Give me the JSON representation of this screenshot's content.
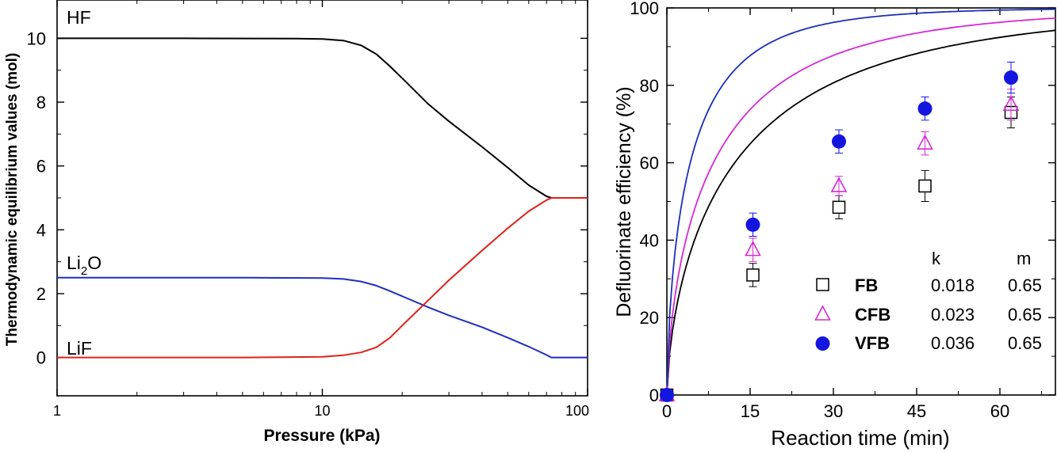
{
  "chart_data": [
    {
      "type": "line",
      "title": "",
      "xlabel": "Pressure (kPa)",
      "ylabel": "Thermodynamic equilibrium values (mol)",
      "xscale": "log",
      "xlim": [
        1,
        100
      ],
      "ylim": [
        -1.2,
        11.2
      ],
      "x_ticks": [
        1,
        10,
        100
      ],
      "x_tick_labels": [
        "1",
        "10",
        "100"
      ],
      "y_ticks": [
        0,
        2,
        4,
        6,
        8,
        10
      ],
      "y_tick_labels": [
        "0",
        "2",
        "4",
        "6",
        "8",
        "10"
      ],
      "grid": false,
      "series": [
        {
          "name": "HF",
          "label_text": "HF",
          "color": "#000000",
          "points": [
            [
              1,
              10
            ],
            [
              3,
              10
            ],
            [
              8,
              9.99
            ],
            [
              10,
              9.98
            ],
            [
              12,
              9.93
            ],
            [
              14,
              9.78
            ],
            [
              16,
              9.5
            ],
            [
              18,
              9.12
            ],
            [
              20,
              8.75
            ],
            [
              25,
              7.95
            ],
            [
              30,
              7.4
            ],
            [
              40,
              6.6
            ],
            [
              50,
              5.95
            ],
            [
              60,
              5.4
            ],
            [
              70,
              5.05
            ],
            [
              73,
              5.0
            ],
            [
              80,
              5.0
            ],
            [
              100,
              5.0
            ]
          ]
        },
        {
          "name": "Li₂O",
          "label_main": "Li",
          "label_sub": "2",
          "label_end": "O",
          "color": "#1f2fbf",
          "points": [
            [
              1,
              2.5
            ],
            [
              5,
              2.5
            ],
            [
              10,
              2.49
            ],
            [
              12,
              2.46
            ],
            [
              14,
              2.38
            ],
            [
              16,
              2.25
            ],
            [
              18,
              2.08
            ],
            [
              20,
              1.92
            ],
            [
              25,
              1.58
            ],
            [
              30,
              1.32
            ],
            [
              40,
              0.95
            ],
            [
              50,
              0.62
            ],
            [
              60,
              0.34
            ],
            [
              70,
              0.08
            ],
            [
              73,
              0.0
            ],
            [
              80,
              0.0
            ],
            [
              100,
              0.0
            ]
          ]
        },
        {
          "name": "LiF",
          "label_text": "LiF",
          "color": "#e0201a",
          "points": [
            [
              1,
              0
            ],
            [
              5,
              0
            ],
            [
              10,
              0.02
            ],
            [
              12,
              0.07
            ],
            [
              14,
              0.16
            ],
            [
              16,
              0.32
            ],
            [
              18,
              0.62
            ],
            [
              20,
              1.0
            ],
            [
              25,
              1.78
            ],
            [
              30,
              2.42
            ],
            [
              40,
              3.35
            ],
            [
              50,
              4.05
            ],
            [
              60,
              4.58
            ],
            [
              70,
              4.93
            ],
            [
              73,
              5.0
            ],
            [
              80,
              5.0
            ],
            [
              100,
              5.0
            ]
          ]
        }
      ]
    },
    {
      "type": "scatter",
      "title": "",
      "xlabel": "Reaction time (min)",
      "ylabel": "Defluorinate efficiency (%)",
      "xlim": [
        0,
        70
      ],
      "ylim": [
        0,
        100
      ],
      "x_ticks": [
        0,
        15,
        30,
        45,
        60
      ],
      "x_tick_labels": [
        "0",
        "15",
        "30",
        "45",
        "60"
      ],
      "y_ticks": [
        0,
        20,
        40,
        60,
        80,
        100
      ],
      "y_tick_labels": [
        "0",
        "20",
        "40",
        "60",
        "80",
        "100"
      ],
      "grid": false,
      "legend_position": "bottom-right",
      "legend_header": {
        "k": "k",
        "m": "m"
      },
      "series": [
        {
          "name": "FB",
          "marker": "open-square",
          "color": "#000000",
          "k": "0.018",
          "m": "0.65",
          "x": [
            0,
            15.5,
            31,
            46.5,
            62
          ],
          "y": [
            0,
            31,
            48.5,
            54,
            73
          ],
          "yerr": [
            0,
            3,
            3,
            4,
            4
          ]
        },
        {
          "name": "CFB",
          "marker": "open-triangle",
          "color": "#d42ad4",
          "k": "0.023",
          "m": "0.65",
          "x": [
            0,
            15.5,
            31,
            46.5,
            62
          ],
          "y": [
            0,
            37.5,
            54,
            65,
            75
          ],
          "yerr": [
            0,
            3,
            2.5,
            3,
            4
          ]
        },
        {
          "name": "VFB",
          "marker": "filled-circle",
          "color": "#1515e0",
          "k": "0.036",
          "m": "0.65",
          "x": [
            0,
            15.5,
            31,
            46.5,
            62
          ],
          "y": [
            0,
            44,
            65.5,
            74,
            82
          ],
          "yerr": [
            0,
            3,
            3,
            3,
            4
          ]
        }
      ],
      "fits": [
        {
          "series": "FB",
          "color": "#000000",
          "k": 0.018,
          "m": 0.65
        },
        {
          "series": "CFB",
          "color": "#d42ad4",
          "k": 0.023,
          "m": 0.65
        },
        {
          "series": "VFB",
          "color": "#1a2fb8",
          "k": 0.036,
          "m": 0.65
        }
      ]
    }
  ]
}
